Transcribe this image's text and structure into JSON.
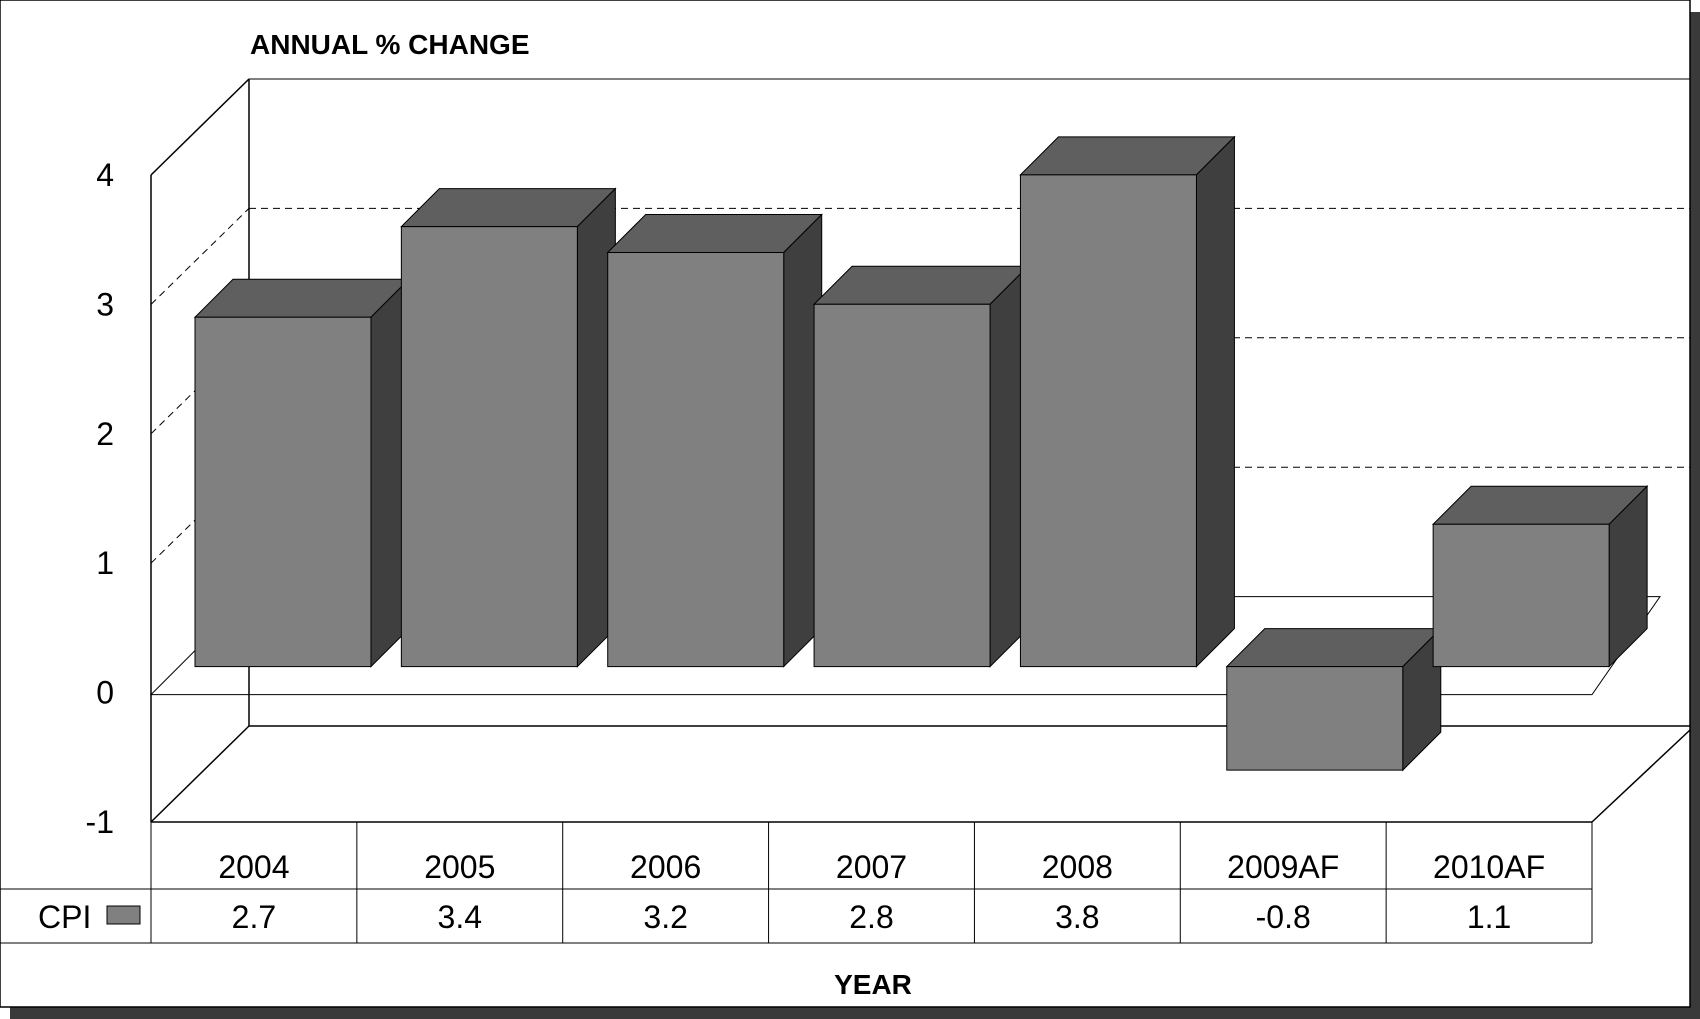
{
  "chart_data": {
    "type": "bar",
    "title": "ANNUAL % CHANGE",
    "xlabel": "YEAR",
    "ylabel": "",
    "categories": [
      "2004",
      "2005",
      "2006",
      "2007",
      "2008",
      "2009AF",
      "2010AF"
    ],
    "series": [
      {
        "name": "CPI",
        "values": [
          2.7,
          3.4,
          3.2,
          2.8,
          3.8,
          -0.8,
          1.1
        ]
      }
    ],
    "value_labels": [
      "2.7",
      "3.4",
      "3.2",
      "2.8",
      "3.8",
      "-0.8",
      "1.1"
    ],
    "yticks": [
      "4",
      "3",
      "2",
      "1",
      "0",
      "-1"
    ],
    "ylim": [
      -1,
      4
    ],
    "grid": true,
    "legend": "data-table-left",
    "colors": {
      "bar_front": "#808080",
      "bar_top": "#5f5f5f",
      "bar_side": "#3f3f3f",
      "frame_shadow": "#3a3a3a"
    }
  }
}
